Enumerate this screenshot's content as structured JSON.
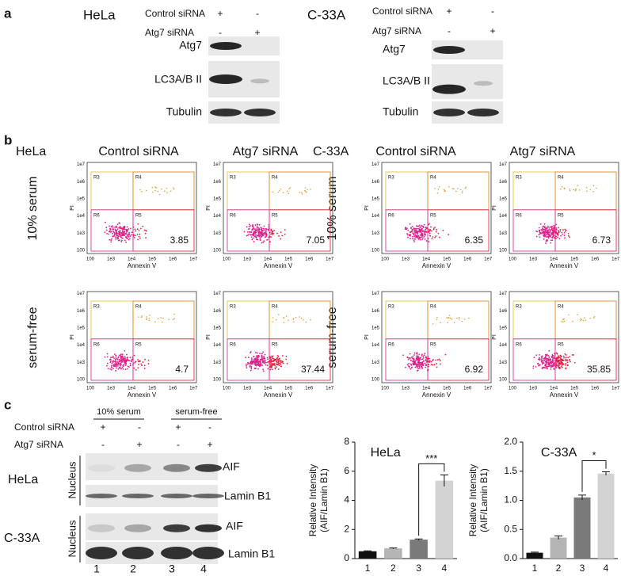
{
  "panel_a": {
    "label": "a",
    "blots": [
      {
        "cell_line": "HeLa",
        "conditions": [
          {
            "name": "Control siRNA",
            "marks": [
              "+",
              "-"
            ]
          },
          {
            "name": "Atg7 siRNA",
            "marks": [
              "-",
              "+"
            ]
          }
        ],
        "bands": [
          "Atg7",
          "LC3A/B II",
          "Tubulin"
        ]
      },
      {
        "cell_line": "C-33A",
        "conditions": [
          {
            "name": "Control siRNA",
            "marks": [
              "+",
              "-"
            ]
          },
          {
            "name": "Atg7 siRNA",
            "marks": [
              "-",
              "+"
            ]
          }
        ],
        "bands": [
          "Atg7",
          "LC3A/B II",
          "Tubulin"
        ]
      }
    ]
  },
  "panel_b": {
    "label": "b",
    "cell_lines": [
      "HeLa",
      "C-33A"
    ],
    "columns": [
      "Control siRNA",
      "Atg7 siRNA",
      "Control siRNA",
      "Atg7 siRNA"
    ],
    "rows": [
      "10% serum",
      "serum-free"
    ],
    "y_label": "PI",
    "x_label": "Annexin V",
    "gates": [
      "R3",
      "R4",
      "R5",
      "R6"
    ],
    "axis_ticks": [
      "100",
      "1e3",
      "1e4",
      "1e5",
      "1e6",
      "1e7"
    ],
    "percentages": [
      [
        3.85,
        7.05,
        6.35,
        6.73
      ],
      [
        4.7,
        37.44,
        6.92,
        35.85
      ]
    ]
  },
  "panel_c": {
    "label": "c",
    "serum_groups": [
      "10% serum",
      "serum-free"
    ],
    "conditions": [
      {
        "name": "Control siRNA",
        "marks": [
          "+",
          "-",
          "+",
          "-"
        ]
      },
      {
        "name": "Atg7 siRNA",
        "marks": [
          "-",
          "+",
          "-",
          "+"
        ]
      }
    ],
    "rows": [
      {
        "cell_line": "HeLa",
        "compartment": "Nucleus",
        "bands": [
          "AIF",
          "Lamin B1"
        ]
      },
      {
        "cell_line": "C-33A",
        "compartment": "Nucleus",
        "bands": [
          "AIF",
          "Lamin B1"
        ]
      }
    ],
    "lanes": [
      "1",
      "2",
      "3",
      "4"
    ],
    "charts": [
      {
        "type": "bar",
        "title": "HeLa",
        "y_label": [
          "Relative Intensity",
          "(AIF/Lamin B1)"
        ],
        "categories": [
          "1",
          "2",
          "3",
          "4"
        ],
        "values": [
          0.5,
          0.7,
          1.3,
          5.35
        ],
        "errors": [
          0.03,
          0.03,
          0.05,
          0.4
        ],
        "colors": [
          "#111111",
          "#b5b5b5",
          "#7a7a7a",
          "#d3d3d3"
        ],
        "ylim": [
          0,
          8
        ],
        "yticks": [
          0,
          2,
          4,
          6,
          8
        ],
        "annotation": "***"
      },
      {
        "type": "bar",
        "title": "C-33A",
        "y_label": [
          "Relative Intensity",
          "(AIF/Lamin B1)"
        ],
        "categories": [
          "1",
          "2",
          "3",
          "4"
        ],
        "values": [
          0.1,
          0.36,
          1.05,
          1.46
        ],
        "errors": [
          0.01,
          0.03,
          0.04,
          0.03
        ],
        "colors": [
          "#111111",
          "#b5b5b5",
          "#7a7a7a",
          "#d3d3d3"
        ],
        "ylim": [
          0,
          2
        ],
        "yticks": [
          {
            "value": 0,
            "label": "0.0"
          },
          0.5,
          {
            "value": 1,
            "label": "1.0"
          },
          1.5,
          {
            "value": 2,
            "label": "2.0"
          }
        ],
        "annotation": "*"
      }
    ]
  }
}
